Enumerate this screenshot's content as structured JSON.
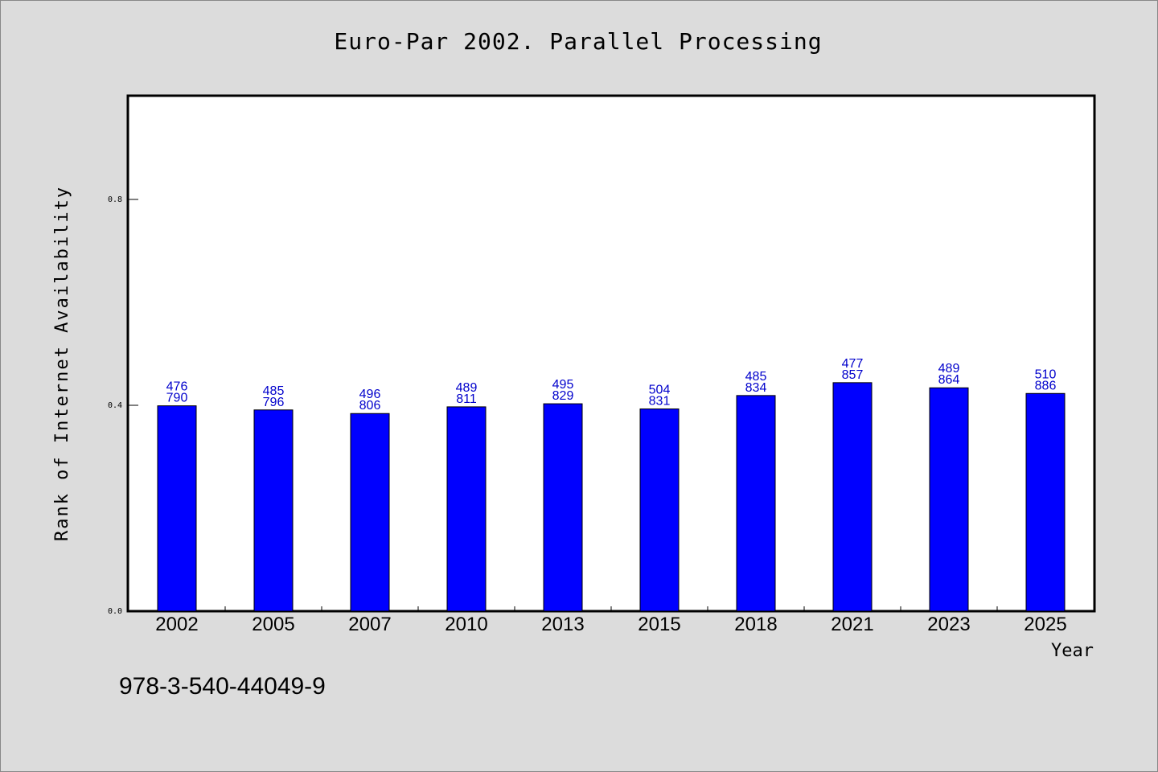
{
  "chart_data": {
    "type": "bar",
    "title": "Euro-Par 2002. Parallel Processing",
    "xlabel": "Year",
    "ylabel": "Rank of Internet Availability",
    "categories": [
      "2002",
      "2005",
      "2007",
      "2010",
      "2013",
      "2015",
      "2018",
      "2021",
      "2023",
      "2025"
    ],
    "series": [
      {
        "values": [
          0.399,
          0.391,
          0.384,
          0.397,
          0.403,
          0.393,
          0.419,
          0.444,
          0.434,
          0.423
        ],
        "color": "#0000ff",
        "label_top": [
          "476",
          "485",
          "496",
          "489",
          "495",
          "504",
          "485",
          "477",
          "489",
          "510"
        ],
        "label_bottom": [
          "790",
          "796",
          "806",
          "811",
          "829",
          "831",
          "834",
          "857",
          "864",
          "886"
        ]
      }
    ],
    "ylim": [
      0,
      1.0
    ],
    "yticks": [
      0.0,
      0.4,
      0.8
    ],
    "ytick_labels": [
      "0.0",
      "0.4",
      "0.8"
    ],
    "grid": false
  },
  "footer_text": "978-3-540-44049-9"
}
